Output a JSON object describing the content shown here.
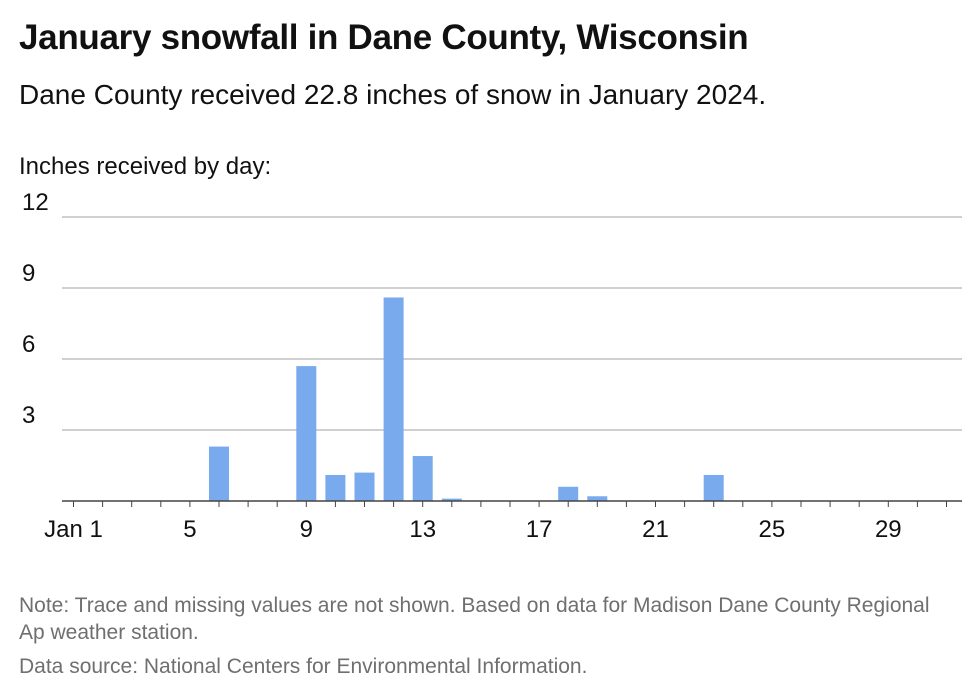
{
  "header": {
    "title": "January snowfall in Dane County, Wisconsin",
    "subtitle": "Dane County received 22.8 inches of snow in January 2024.",
    "axis_caption": "Inches received by day:"
  },
  "footer": {
    "note": "Note: Trace and missing values are not shown. Based on data for Madison Dane County Regional Ap weather station.",
    "source": "Data source: National Centers for Environmental Information."
  },
  "colors": {
    "bar": "#7aaaee",
    "grid": "#b3b3b3",
    "axis": "#444444"
  },
  "chart_data": {
    "type": "bar",
    "title": "January snowfall in Dane County, Wisconsin",
    "ylabel": "Inches received by day:",
    "ylim": [
      0,
      12
    ],
    "yticks": [
      3,
      6,
      9,
      12
    ],
    "xlim": [
      1,
      31
    ],
    "xticks": [
      {
        "day": 1,
        "label": "Jan 1"
      },
      {
        "day": 5,
        "label": "5"
      },
      {
        "day": 9,
        "label": "9"
      },
      {
        "day": 13,
        "label": "13"
      },
      {
        "day": 17,
        "label": "17"
      },
      {
        "day": 21,
        "label": "21"
      },
      {
        "day": 25,
        "label": "25"
      },
      {
        "day": 29,
        "label": "29"
      }
    ],
    "grid": true,
    "x": [
      6,
      9,
      10,
      11,
      12,
      13,
      14,
      18,
      19,
      23
    ],
    "values": [
      2.3,
      5.7,
      1.1,
      1.2,
      8.6,
      1.9,
      0.1,
      0.6,
      0.2,
      1.1
    ]
  }
}
